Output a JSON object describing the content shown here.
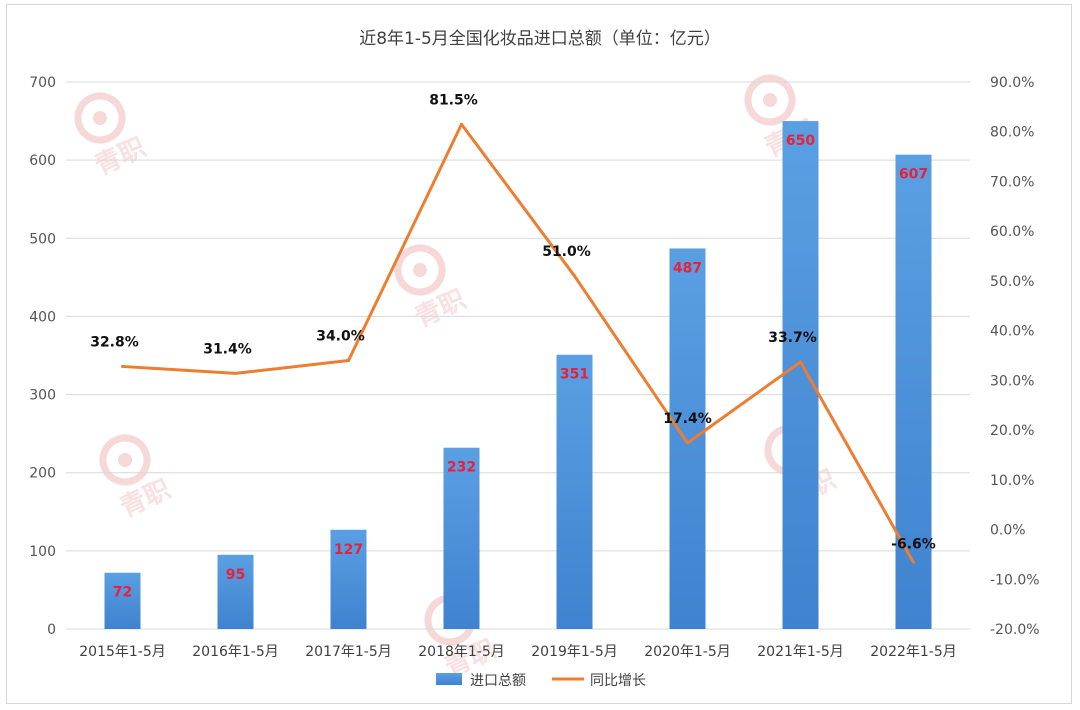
{
  "chart_data": {
    "type": "bar",
    "title": "近8年1-5月全国化妆品进口总额（单位：亿元）",
    "categories": [
      "2015年1-5月",
      "2016年1-5月",
      "2017年1-5月",
      "2018年1-5月",
      "2019年1-5月",
      "2020年1-5月",
      "2021年1-5月",
      "2022年1-5月"
    ],
    "series": [
      {
        "name": "进口总额",
        "type": "bar",
        "axis": "left",
        "values": [
          72,
          95,
          127,
          232,
          351,
          487,
          650,
          607
        ],
        "labels": [
          "72",
          "95",
          "127",
          "232",
          "351",
          "487",
          "650",
          "607"
        ],
        "color": "#4a8fd6",
        "label_color": "#e8203a"
      },
      {
        "name": "同比增长",
        "type": "line",
        "axis": "right",
        "values": [
          32.8,
          31.4,
          34.0,
          81.5,
          51.0,
          17.4,
          33.7,
          -6.6
        ],
        "labels": [
          "32.8%",
          "31.4%",
          "34.0%",
          "81.5%",
          "51.0%",
          "17.4%",
          "33.7%",
          "-6.6%"
        ],
        "color": "#ed7d31"
      }
    ],
    "ylim_left": [
      0,
      700
    ],
    "yticks_left": [
      "0",
      "100",
      "200",
      "300",
      "400",
      "500",
      "600",
      "700"
    ],
    "ylim_right": [
      -20,
      90
    ],
    "yticks_right": [
      "-20.0%",
      "-10.0%",
      "0.0%",
      "10.0%",
      "20.0%",
      "30.0%",
      "40.0%",
      "50.0%",
      "60.0%",
      "70.0%",
      "80.0%",
      "90.0%"
    ],
    "grid": true,
    "legend_position": "bottom"
  },
  "watermark": {
    "text": "青职",
    "color": "#e8a0a0"
  }
}
